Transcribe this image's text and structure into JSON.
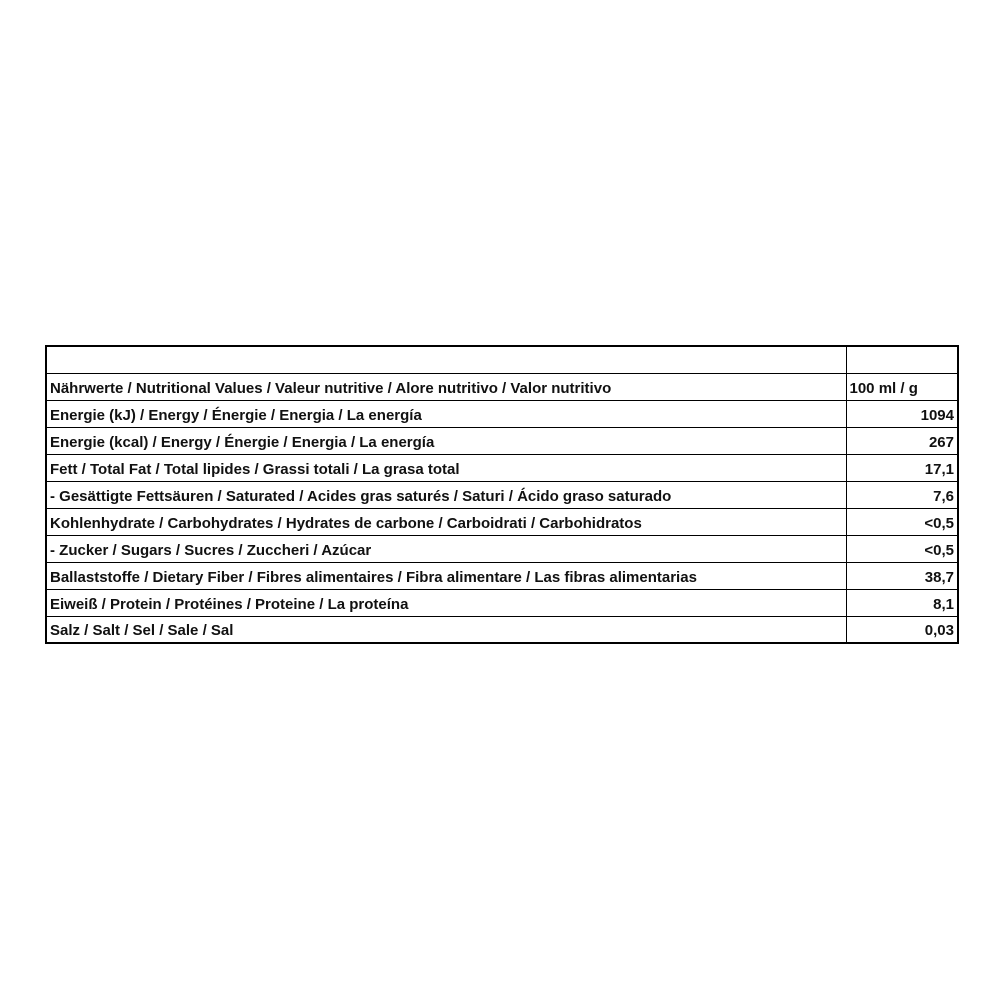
{
  "header": {
    "label": "Nährwerte / Nutritional Values / Valeur nutritive / Alore nutritivo / Valor nutritivo",
    "unit": "100 ml / g"
  },
  "rows": [
    {
      "label": "Energie (kJ) / Energy / Énergie / Energia / La energía",
      "value": "1094"
    },
    {
      "label": "Energie (kcal) / Energy / Énergie / Energia / La energía",
      "value": "267"
    },
    {
      "label": "Fett / Total Fat / Total lipides / Grassi totali / La grasa total",
      "value": "17,1"
    },
    {
      "label": "- Gesättigte Fettsäuren / Saturated / Acides gras saturés / Saturi / Ácido graso saturado",
      "value": "7,6"
    },
    {
      "label": "Kohlenhydrate / Carbohydrates / Hydrates de carbone / Carboidrati / Carbohidratos",
      "value": "<0,5"
    },
    {
      "label": "- Zucker / Sugars / Sucres / Zuccheri / Azúcar",
      "value": "<0,5"
    },
    {
      "label": "Ballaststoffe / Dietary Fiber / Fibres alimentaires / Fibra alimentare / Las fibras alimentarias",
      "value": "38,7"
    },
    {
      "label": "Eiweiß / Protein / Protéines / Proteine / La proteína",
      "value": "8,1"
    },
    {
      "label": "Salz / Salt / Sel / Sale / Sal",
      "value": "0,03"
    }
  ]
}
